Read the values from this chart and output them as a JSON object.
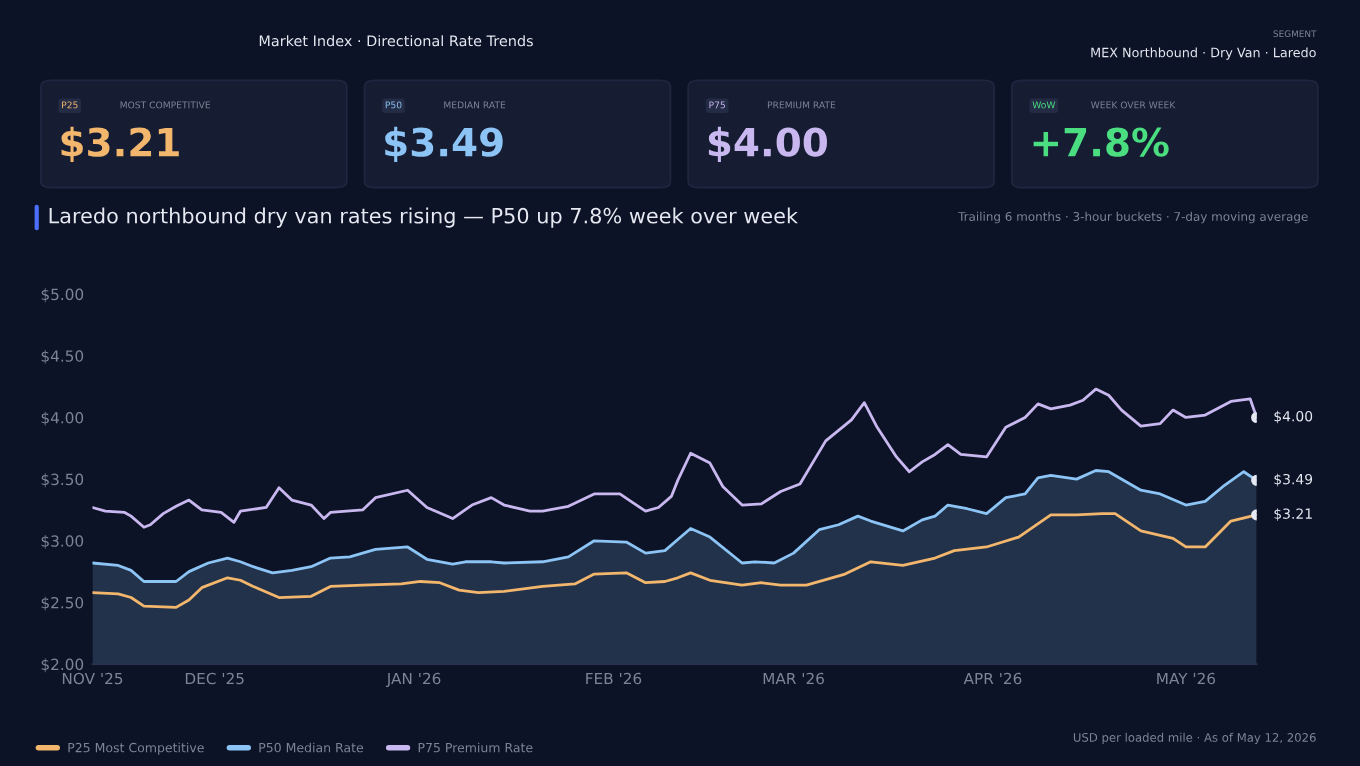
{
  "chart_data": {
    "type": "line",
    "title": "Laredo northbound dry van rates rising — P50 up 7.8% week over week",
    "subtitle": "Trailing 6 months · 3-hour buckets · 7-day moving average",
    "xlim": [
      "2025-11-12",
      "2026-05-12"
    ],
    "xticks": [
      {
        "value": "2025-11-12",
        "label": "NOV '25"
      },
      {
        "value": "2025-12-01",
        "label": "DEC '25"
      },
      {
        "value": "2026-01-01",
        "label": "JAN '26"
      },
      {
        "value": "2026-02-01",
        "label": "FEB '26"
      },
      {
        "value": "2026-03-01",
        "label": "MAR '26"
      },
      {
        "value": "2026-04-01",
        "label": "APR '26"
      },
      {
        "value": "2026-05-01",
        "label": "MAY '26"
      }
    ],
    "ylim": [
      2,
      5
    ],
    "yticks": [
      {
        "value": 2,
        "label": "$2.00"
      },
      {
        "value": 2.5,
        "label": "$2.50"
      },
      {
        "value": 3,
        "label": "$3.00"
      },
      {
        "value": 3.5,
        "label": "$3.50"
      },
      {
        "value": 4,
        "label": "$4.00"
      },
      {
        "value": 4.5,
        "label": "$4.50"
      },
      {
        "value": 5,
        "label": "$5.00"
      }
    ],
    "grid": false,
    "legend": "bottom",
    "series": [
      {
        "name": "P25 Most Competitive",
        "color": "#f2b66d",
        "x": [
          "2025-11-12",
          "2025-11-16",
          "2025-11-18",
          "2025-11-20",
          "2025-11-25",
          "2025-11-27",
          "2025-11-29",
          "2025-12-03",
          "2025-12-05",
          "2025-12-07",
          "2025-12-11",
          "2025-12-16",
          "2025-12-19",
          "2025-12-24",
          "2025-12-30",
          "2026-01-02",
          "2026-01-05",
          "2026-01-08",
          "2026-01-11",
          "2026-01-15",
          "2026-01-21",
          "2026-01-26",
          "2026-01-29",
          "2026-02-03",
          "2026-02-06",
          "2026-02-09",
          "2026-02-11",
          "2026-02-13",
          "2026-02-16",
          "2026-02-21",
          "2026-02-24",
          "2026-02-27",
          "2026-03-03",
          "2026-03-09",
          "2026-03-13",
          "2026-03-18",
          "2026-03-23",
          "2026-03-26",
          "2026-03-31",
          "2026-04-05",
          "2026-04-10",
          "2026-04-14",
          "2026-04-18",
          "2026-04-20",
          "2026-04-24",
          "2026-04-29",
          "2026-05-01",
          "2026-05-04",
          "2026-05-08",
          "2026-05-12"
        ],
        "values": [
          2.58,
          2.57,
          2.54,
          2.47,
          2.46,
          2.52,
          2.62,
          2.7,
          2.68,
          2.63,
          2.54,
          2.55,
          2.63,
          2.64,
          2.65,
          2.67,
          2.66,
          2.6,
          2.58,
          2.59,
          2.63,
          2.65,
          2.73,
          2.74,
          2.66,
          2.67,
          2.7,
          2.74,
          2.68,
          2.64,
          2.66,
          2.64,
          2.64,
          2.73,
          2.83,
          2.8,
          2.86,
          2.92,
          2.95,
          3.03,
          3.21,
          3.21,
          3.22,
          3.22,
          3.08,
          3.02,
          2.95,
          2.95,
          3.16,
          3.21
        ]
      },
      {
        "name": "P50 Median Rate",
        "type": "area",
        "color": "#8cc4f5",
        "x": [
          "2025-11-12",
          "2025-11-16",
          "2025-11-18",
          "2025-11-20",
          "2025-11-25",
          "2025-11-27",
          "2025-11-30",
          "2025-12-03",
          "2025-12-05",
          "2025-12-07",
          "2025-12-10",
          "2025-12-13",
          "2025-12-16",
          "2025-12-19",
          "2025-12-22",
          "2025-12-26",
          "2025-12-31",
          "2026-01-03",
          "2026-01-07",
          "2026-01-09",
          "2026-01-13",
          "2026-01-15",
          "2026-01-21",
          "2026-01-25",
          "2026-01-29",
          "2026-02-03",
          "2026-02-06",
          "2026-02-09",
          "2026-02-11",
          "2026-02-13",
          "2026-02-16",
          "2026-02-21",
          "2026-02-23",
          "2026-02-26",
          "2026-03-01",
          "2026-03-05",
          "2026-03-08",
          "2026-03-11",
          "2026-03-13",
          "2026-03-18",
          "2026-03-21",
          "2026-03-23",
          "2026-03-25",
          "2026-03-28",
          "2026-03-31",
          "2026-04-03",
          "2026-04-06",
          "2026-04-08",
          "2026-04-10",
          "2026-04-14",
          "2026-04-17",
          "2026-04-19",
          "2026-04-24",
          "2026-04-27",
          "2026-05-01",
          "2026-05-04",
          "2026-05-07",
          "2026-05-10",
          "2026-05-12"
        ],
        "values": [
          2.82,
          2.8,
          2.76,
          2.67,
          2.67,
          2.75,
          2.82,
          2.86,
          2.83,
          2.79,
          2.74,
          2.76,
          2.79,
          2.86,
          2.87,
          2.93,
          2.95,
          2.85,
          2.81,
          2.83,
          2.83,
          2.82,
          2.83,
          2.87,
          3.0,
          2.99,
          2.9,
          2.92,
          3.01,
          3.1,
          3.03,
          2.82,
          2.83,
          2.82,
          2.9,
          3.09,
          3.13,
          3.2,
          3.16,
          3.08,
          3.17,
          3.2,
          3.29,
          3.26,
          3.22,
          3.35,
          3.38,
          3.51,
          3.53,
          3.5,
          3.57,
          3.56,
          3.41,
          3.38,
          3.29,
          3.32,
          3.45,
          3.56,
          3.49
        ]
      },
      {
        "name": "P75 Premium Rate",
        "color": "#c9b8f0",
        "x": [
          "2025-11-12",
          "2025-11-14",
          "2025-11-17",
          "2025-11-18",
          "2025-11-20",
          "2025-11-21",
          "2025-11-23",
          "2025-11-25",
          "2025-11-27",
          "2025-11-29",
          "2025-12-02",
          "2025-12-04",
          "2025-12-05",
          "2025-12-09",
          "2025-12-11",
          "2025-12-13",
          "2025-12-16",
          "2025-12-18",
          "2025-12-19",
          "2025-12-24",
          "2025-12-26",
          "2025-12-31",
          "2026-01-03",
          "2026-01-07",
          "2026-01-10",
          "2026-01-13",
          "2026-01-15",
          "2026-01-19",
          "2026-01-21",
          "2026-01-25",
          "2026-01-29",
          "2026-02-02",
          "2026-02-04",
          "2026-02-06",
          "2026-02-08",
          "2026-02-10",
          "2026-02-11",
          "2026-02-13",
          "2026-02-16",
          "2026-02-18",
          "2026-02-21",
          "2026-02-24",
          "2026-02-27",
          "2026-03-02",
          "2026-03-06",
          "2026-03-10",
          "2026-03-12",
          "2026-03-14",
          "2026-03-17",
          "2026-03-19",
          "2026-03-21",
          "2026-03-23",
          "2026-03-25",
          "2026-03-27",
          "2026-03-31",
          "2026-04-03",
          "2026-04-06",
          "2026-04-08",
          "2026-04-10",
          "2026-04-13",
          "2026-04-15",
          "2026-04-17",
          "2026-04-19",
          "2026-04-21",
          "2026-04-24",
          "2026-04-27",
          "2026-04-29",
          "2026-05-01",
          "2026-05-04",
          "2026-05-08",
          "2026-05-11",
          "2026-05-12"
        ],
        "values": [
          3.27,
          3.24,
          3.23,
          3.2,
          3.11,
          3.13,
          3.22,
          3.28,
          3.33,
          3.25,
          3.23,
          3.15,
          3.24,
          3.27,
          3.43,
          3.33,
          3.29,
          3.18,
          3.23,
          3.25,
          3.35,
          3.41,
          3.27,
          3.18,
          3.29,
          3.35,
          3.29,
          3.24,
          3.24,
          3.28,
          3.38,
          3.38,
          3.31,
          3.24,
          3.27,
          3.36,
          3.49,
          3.71,
          3.63,
          3.44,
          3.29,
          3.3,
          3.4,
          3.46,
          3.81,
          3.98,
          4.12,
          3.92,
          3.68,
          3.56,
          3.64,
          3.7,
          3.78,
          3.7,
          3.68,
          3.92,
          4.0,
          4.11,
          4.07,
          4.1,
          4.14,
          4.23,
          4.18,
          4.06,
          3.93,
          3.95,
          4.06,
          4.0,
          4.02,
          4.13,
          4.15,
          4.0
        ]
      }
    ],
    "annotations": [
      {
        "text": "$4.00",
        "x": "2026-05-12",
        "y": 4.0
      },
      {
        "text": "$3.49",
        "x": "2026-05-12",
        "y": 3.49
      },
      {
        "text": "$3.21",
        "x": "2026-05-12",
        "y": 3.21
      },
      "Market Index · Directional Rate Trends",
      "SEGMENT",
      "MEX Northbound · Dry Van · Laredo",
      "P25",
      "MOST COMPETITIVE",
      "$3.21",
      "P50",
      "MEDIAN RATE",
      "$3.49",
      "P75",
      "PREMIUM RATE",
      "$4.00",
      "WoW",
      "WEEK OVER WEEK",
      "+7.8%",
      "USD per loaded mile · As of May 12, 2026"
    ]
  }
}
